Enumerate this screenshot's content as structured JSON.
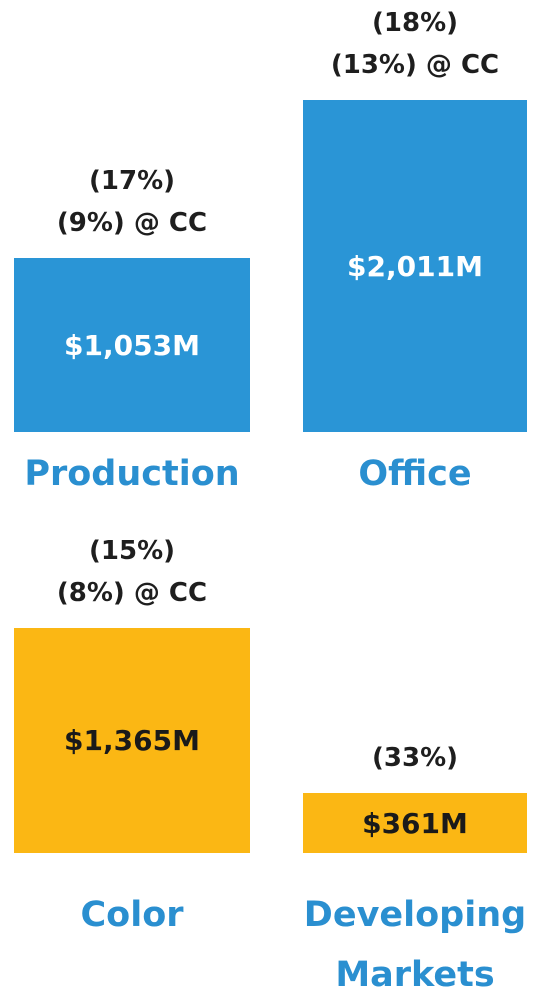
{
  "chart_data": [
    {
      "type": "bar",
      "categories": [
        "Production",
        "Office"
      ],
      "values": [
        1053,
        2011
      ],
      "value_labels": [
        "$1,053M",
        "$2,011M"
      ],
      "annotations": [
        [
          "(17%)",
          "(9%) @ CC"
        ],
        [
          "(18%)",
          "(13%) @ CC"
        ]
      ],
      "color": "#2a95d6"
    },
    {
      "type": "bar",
      "categories": [
        "Color",
        "Developing Markets"
      ],
      "values": [
        1365,
        361
      ],
      "value_labels": [
        "$1,365M",
        "$361M"
      ],
      "annotations": [
        [
          "(15%)",
          "(8%) @ CC"
        ],
        [
          "(33%)"
        ]
      ],
      "color": "#fbb714"
    }
  ]
}
